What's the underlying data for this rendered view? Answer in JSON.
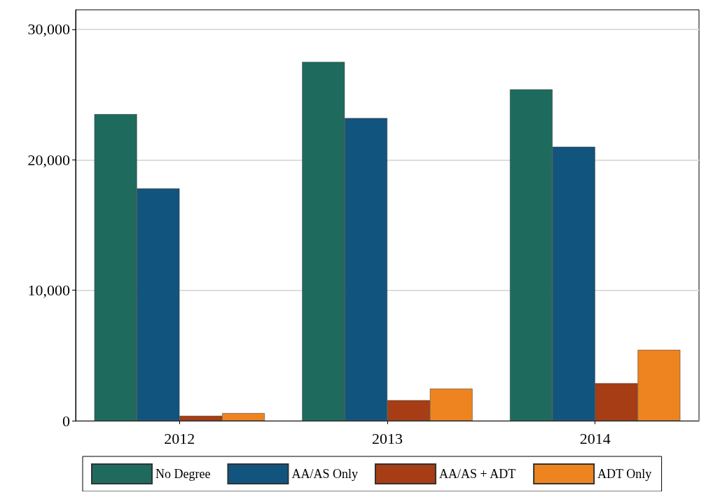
{
  "chart_data": {
    "type": "bar",
    "categories": [
      "2012",
      "2013",
      "2014"
    ],
    "series": [
      {
        "name": "No Degree",
        "color": "#1e6b5e",
        "values": [
          23500,
          27500,
          25400
        ]
      },
      {
        "name": "AA/AS Only",
        "color": "#11547e",
        "values": [
          17800,
          23200,
          21000
        ]
      },
      {
        "name": "AA/AS + ADT",
        "color": "#a63d14",
        "values": [
          370,
          1570,
          2870
        ]
      },
      {
        "name": "ADT Only",
        "color": "#ee841f",
        "values": [
          580,
          2450,
          5430
        ]
      }
    ],
    "ylim": [
      0,
      31500
    ],
    "yticks": [
      {
        "value": 0,
        "label": "0"
      },
      {
        "value": 10000,
        "label": "10,000"
      },
      {
        "value": 20000,
        "label": "20,000"
      },
      {
        "value": 30000,
        "label": "30,000"
      }
    ],
    "grid": "y",
    "legend": "bottom"
  }
}
